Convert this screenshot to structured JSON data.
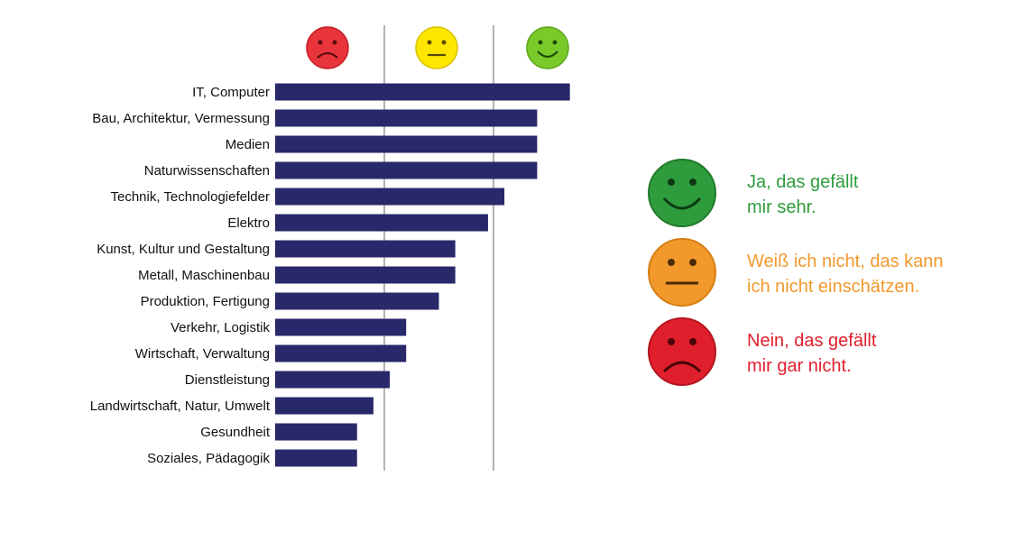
{
  "colors": {
    "bar": "#28286a",
    "gridline": "#9a9a9a",
    "happy": "#2e9c3c",
    "neutral": "#f2992c",
    "sad": "#e01f2d",
    "header_sad": "#e8343b",
    "header_neutral": "#ffe600",
    "header_happy": "#7acb2a"
  },
  "chart_data": {
    "type": "bar",
    "orientation": "horizontal",
    "title": "",
    "xlabel": "",
    "ylabel": "",
    "xlim": [
      0,
      3
    ],
    "dividers_at": [
      1,
      2
    ],
    "column_headers": [
      {
        "icon": "sad-face-icon",
        "meaning": "Nein, das gefällt mir gar nicht."
      },
      {
        "icon": "neutral-face-icon",
        "meaning": "Weiß ich nicht, das kann ich nicht einschätzen."
      },
      {
        "icon": "happy-face-icon",
        "meaning": "Ja, das gefällt mir sehr."
      }
    ],
    "categories": [
      "IT, Computer",
      "Bau, Architektur, Vermessung",
      "Medien",
      "Naturwissenschaften",
      "Technik, Technologiefelder",
      "Elektro",
      "Kunst, Kultur und Gestaltung",
      "Metall, Maschinenbau",
      "Produktion, Fertigung",
      "Verkehr, Logistik",
      "Wirtschaft, Verwaltung",
      "Dienstleistung",
      "Landwirtschaft, Natur, Umwelt",
      "Gesundheit",
      "Soziales, Pädagogik"
    ],
    "values": [
      2.7,
      2.4,
      2.4,
      2.4,
      2.1,
      1.95,
      1.65,
      1.65,
      1.5,
      1.2,
      1.2,
      1.05,
      0.9,
      0.75,
      0.75
    ]
  },
  "legend": [
    {
      "key": "happy",
      "icon": "happy-face-icon",
      "line1": "Ja, das gefällt",
      "line2": "mir sehr."
    },
    {
      "key": "neutral",
      "icon": "neutral-face-icon",
      "line1": "Weiß ich nicht, das kann",
      "line2": "ich nicht einschätzen."
    },
    {
      "key": "sad",
      "icon": "sad-face-icon",
      "line1": "Nein, das gefällt",
      "line2": "mir gar nicht."
    }
  ]
}
